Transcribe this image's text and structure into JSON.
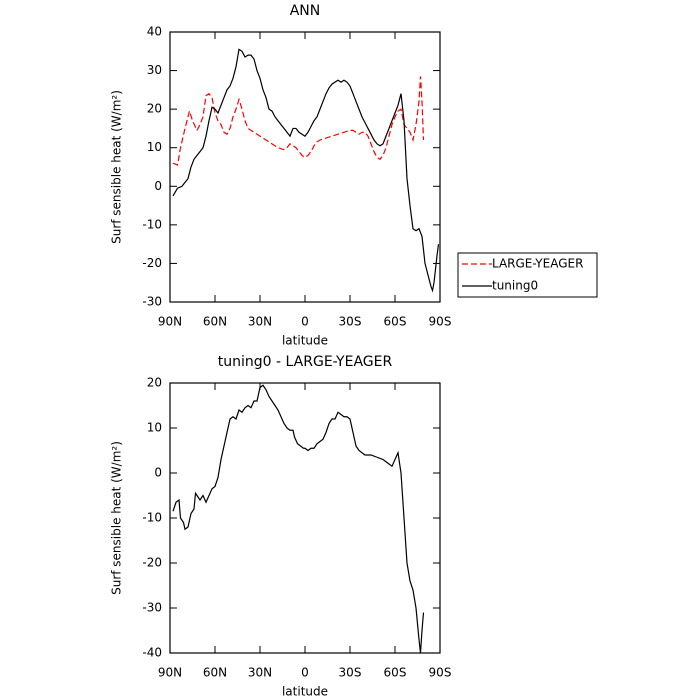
{
  "chart_data": [
    {
      "type": "line",
      "title": "ANN",
      "x_label": "latitude",
      "y_label": "Surf sensible heat (W/m²)",
      "xlim": [
        90,
        -90
      ],
      "ylim": [
        -30,
        40
      ],
      "xticks": [
        {
          "value": 90,
          "label": "90N"
        },
        {
          "value": 60,
          "label": "60N"
        },
        {
          "value": 30,
          "label": "30N"
        },
        0,
        {
          "value": -30,
          "label": "30S"
        },
        {
          "value": -60,
          "label": "60S"
        },
        {
          "value": -90,
          "label": "90S"
        }
      ],
      "yticks": [
        -30,
        -20,
        -10,
        0,
        10,
        20,
        30,
        40
      ],
      "legend": "right",
      "series": [
        {
          "name": "LARGE-YEAGER",
          "color": "#ff0000",
          "style": "dashed",
          "x": [
            88,
            85,
            83,
            80,
            77,
            75,
            72,
            70,
            68,
            66,
            64,
            62,
            60,
            58,
            56,
            54,
            52,
            50,
            48,
            46,
            44,
            42,
            40,
            38,
            36,
            34,
            30,
            26,
            22,
            18,
            14,
            12,
            10,
            8,
            6,
            4,
            2,
            0,
            -2,
            -4,
            -6,
            -8,
            -10,
            -14,
            -18,
            -22,
            -26,
            -30,
            -32,
            -34,
            -36,
            -38,
            -40,
            -42,
            -44,
            -46,
            -48,
            -50,
            -52,
            -54,
            -56,
            -58,
            -60,
            -62,
            -64,
            -66,
            -68,
            -70,
            -72,
            -74,
            -76,
            -77,
            -78,
            -79
          ],
          "values": [
            6,
            5.5,
            10,
            15,
            19.5,
            17,
            14.5,
            16,
            18,
            23.5,
            24,
            23,
            19,
            17,
            16,
            14,
            13.5,
            15,
            18,
            20,
            22.5,
            20,
            17,
            15,
            14.5,
            14,
            13,
            12,
            11,
            10,
            9.5,
            10,
            11,
            10.5,
            10,
            9,
            8,
            7.5,
            8,
            9,
            10.5,
            11.5,
            12,
            12.5,
            13,
            13.5,
            14,
            14.5,
            14.5,
            14,
            13.5,
            14,
            14,
            13,
            11,
            9,
            7.5,
            7,
            8,
            10,
            13,
            16,
            18,
            19.5,
            20,
            16,
            15,
            14,
            12,
            16,
            22,
            28.5,
            22,
            12
          ]
        },
        {
          "name": "tuning0",
          "color": "#000000",
          "style": "solid",
          "x": [
            88,
            85,
            82,
            80,
            78,
            76,
            74,
            72,
            70,
            68,
            66,
            64,
            62,
            60,
            58,
            56,
            54,
            52,
            50,
            48,
            46,
            44,
            42,
            40,
            38,
            36,
            34,
            32,
            30,
            28,
            26,
            24,
            22,
            20,
            18,
            16,
            14,
            12,
            10,
            8,
            6,
            4,
            2,
            0,
            -2,
            -4,
            -6,
            -8,
            -10,
            -12,
            -14,
            -16,
            -18,
            -20,
            -22,
            -24,
            -26,
            -28,
            -30,
            -32,
            -34,
            -36,
            -38,
            -40,
            -42,
            -44,
            -46,
            -48,
            -50,
            -52,
            -54,
            -56,
            -58,
            -60,
            -62,
            -64,
            -66,
            -68,
            -70,
            -72,
            -74,
            -76,
            -78,
            -80,
            -82,
            -84,
            -85,
            -86,
            -88,
            -89
          ],
          "values": [
            -2.5,
            -0.5,
            0,
            1,
            2,
            5,
            7,
            8,
            9,
            10,
            13,
            17,
            20.5,
            20,
            19,
            21,
            23,
            25,
            26,
            28,
            31,
            35.5,
            35,
            33.5,
            34,
            34,
            33,
            30,
            28,
            25,
            23,
            20,
            19.5,
            18,
            17,
            16,
            15,
            14,
            13,
            15,
            15,
            14,
            13.5,
            13,
            14,
            15.5,
            17,
            18,
            20,
            22,
            24,
            25.5,
            26.5,
            27,
            27.5,
            27,
            27.5,
            27,
            26,
            24,
            22,
            20,
            18,
            16.5,
            15,
            13.5,
            12,
            11,
            10.5,
            11,
            13,
            15,
            17,
            19,
            21,
            24,
            17,
            2,
            -5,
            -11,
            -11.5,
            -11,
            -13,
            -20,
            -23,
            -26,
            -27,
            -25,
            -18,
            -15
          ]
        }
      ]
    },
    {
      "type": "line",
      "title": "tuning0 - LARGE-YEAGER",
      "x_label": "latitude",
      "y_label": "Surf sensible heat (W/m²)",
      "xlim": [
        90,
        -90
      ],
      "ylim": [
        -40,
        20
      ],
      "xticks": [
        {
          "value": 90,
          "label": "90N"
        },
        {
          "value": 60,
          "label": "60N"
        },
        {
          "value": 30,
          "label": "30N"
        },
        0,
        {
          "value": -30,
          "label": "30S"
        },
        {
          "value": -60,
          "label": "60S"
        },
        {
          "value": -90,
          "label": "90S"
        }
      ],
      "yticks": [
        -40,
        -30,
        -20,
        -10,
        0,
        10,
        20
      ],
      "color": "#000000",
      "x": [
        88,
        86,
        84,
        83,
        81,
        80,
        78,
        76,
        74,
        73,
        72,
        70,
        68,
        66,
        64,
        62,
        60,
        58,
        56,
        54,
        52,
        50,
        48,
        46,
        44,
        42,
        40,
        38,
        36,
        34,
        32,
        30,
        28,
        26,
        24,
        22,
        20,
        18,
        16,
        14,
        12,
        10,
        8,
        7,
        5,
        3,
        1,
        0,
        -2,
        -4,
        -6,
        -8,
        -10,
        -12,
        -14,
        -16,
        -18,
        -20,
        -22,
        -24,
        -26,
        -28,
        -30,
        -32,
        -34,
        -36,
        -38,
        -40,
        -44,
        -48,
        -52,
        -54,
        -56,
        -58,
        -60,
        -62,
        -64,
        -66,
        -68,
        -70,
        -72,
        -74,
        -76,
        -77,
        -78,
        -79
      ],
      "values": [
        -8.5,
        -6.5,
        -6,
        -10,
        -11,
        -12.5,
        -12,
        -9,
        -8,
        -4.5,
        -5,
        -6,
        -5,
        -6.5,
        -5,
        -3.5,
        -3,
        -1,
        3,
        6,
        9,
        12,
        12.5,
        12,
        14,
        13.5,
        14.5,
        15,
        14.5,
        16,
        16,
        19,
        19.5,
        18.5,
        17,
        16,
        15,
        14,
        12.5,
        11,
        10,
        9.5,
        9.5,
        8,
        6.5,
        6,
        5.5,
        5.5,
        5,
        5.5,
        5.5,
        6.5,
        7,
        7.5,
        9,
        11,
        12,
        12,
        13.5,
        13,
        12.5,
        12.5,
        12,
        9,
        6,
        5,
        4.5,
        4,
        4,
        3.5,
        3,
        2.5,
        2,
        1.5,
        3,
        4.5,
        0,
        -10,
        -20,
        -24,
        -26,
        -30,
        -37,
        -40,
        -35,
        -31
      ]
    }
  ]
}
